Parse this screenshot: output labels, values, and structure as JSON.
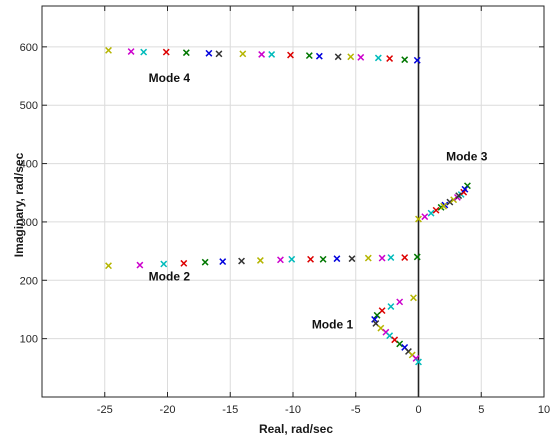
{
  "chart_data": {
    "type": "scatter",
    "title": "",
    "xlabel": "Real, rad/sec",
    "ylabel": "Imaginary, rad/sec",
    "xlim": [
      -30,
      10
    ],
    "ylim": [
      0,
      670
    ],
    "xticks": [
      -25,
      -20,
      -15,
      -10,
      -5,
      0,
      5,
      10
    ],
    "yticks": [
      100,
      200,
      300,
      400,
      500,
      600
    ],
    "grid": true,
    "marker": "x",
    "imaginary_axis_line": 0,
    "colors": [
      "#b5b500",
      "#cc00cc",
      "#00bbbb",
      "#dd0000",
      "#007700",
      "#0000dd",
      "#333333"
    ],
    "annotations": [
      {
        "text": "Mode 4",
        "x": -21.5,
        "y": 540
      },
      {
        "text": "Mode 3",
        "x": 2.2,
        "y": 405
      },
      {
        "text": "Mode 2",
        "x": -21.5,
        "y": 200
      },
      {
        "text": "Mode 1",
        "x": -8.5,
        "y": 117
      }
    ],
    "series": [
      {
        "points": [
          [
            -24.7,
            594
          ],
          [
            -22.9,
            592
          ],
          [
            -21.9,
            591
          ],
          [
            -20.1,
            591
          ],
          [
            -18.5,
            590
          ],
          [
            -16.7,
            589
          ],
          [
            -15.9,
            588
          ],
          [
            -14.0,
            588
          ],
          [
            -12.5,
            587
          ],
          [
            -11.7,
            587
          ],
          [
            -10.2,
            586
          ],
          [
            -8.7,
            585
          ],
          [
            -7.9,
            584
          ],
          [
            -6.4,
            583
          ],
          [
            -5.4,
            583
          ],
          [
            -4.6,
            582
          ],
          [
            -3.2,
            581
          ],
          [
            -2.3,
            580
          ],
          [
            -1.1,
            578
          ],
          [
            -0.1,
            577
          ]
        ]
      },
      {
        "points": [
          [
            0.0,
            305
          ],
          [
            0.5,
            309
          ],
          [
            1.0,
            315
          ],
          [
            1.4,
            320
          ],
          [
            1.8,
            325
          ],
          [
            2.1,
            329
          ],
          [
            2.5,
            334
          ],
          [
            2.8,
            338
          ],
          [
            3.1,
            342
          ],
          [
            3.4,
            347
          ],
          [
            3.6,
            351
          ],
          [
            3.9,
            362
          ],
          [
            3.7,
            356
          ],
          [
            3.2,
            345
          ],
          [
            2.0,
            327
          ]
        ]
      },
      {
        "points": [
          [
            -24.7,
            225
          ],
          [
            -22.2,
            226
          ],
          [
            -20.3,
            228
          ],
          [
            -18.7,
            229
          ],
          [
            -17.0,
            231
          ],
          [
            -15.6,
            232
          ],
          [
            -14.1,
            233
          ],
          [
            -12.6,
            234
          ],
          [
            -11.0,
            235
          ],
          [
            -10.1,
            236
          ],
          [
            -8.6,
            236
          ],
          [
            -7.6,
            236
          ],
          [
            -6.5,
            237
          ],
          [
            -5.3,
            237
          ],
          [
            -4.0,
            238
          ],
          [
            -2.9,
            238
          ],
          [
            -2.2,
            239
          ],
          [
            -1.1,
            239
          ],
          [
            -0.1,
            240
          ]
        ]
      },
      {
        "points": [
          [
            -0.4,
            170
          ],
          [
            -1.5,
            163
          ],
          [
            -2.2,
            155
          ],
          [
            -2.9,
            148
          ],
          [
            -3.3,
            140
          ],
          [
            -3.5,
            133
          ],
          [
            -3.4,
            126
          ],
          [
            -3.0,
            118
          ],
          [
            -2.6,
            111
          ],
          [
            -2.3,
            105
          ],
          [
            -1.9,
            98
          ],
          [
            -1.5,
            91
          ],
          [
            -1.1,
            85
          ],
          [
            -0.8,
            78
          ],
          [
            -0.5,
            72
          ],
          [
            -0.2,
            66
          ],
          [
            0.0,
            60
          ]
        ]
      }
    ]
  }
}
